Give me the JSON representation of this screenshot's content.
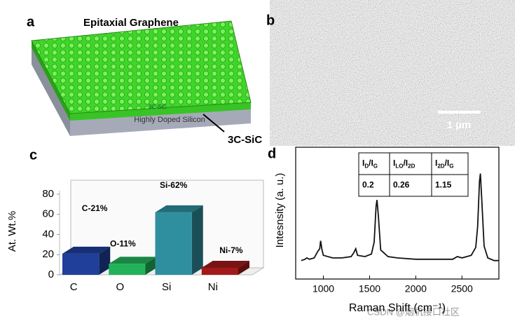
{
  "panel_labels": [
    "a",
    "b",
    "c",
    "d"
  ],
  "illustration": {
    "top_label": "Epitaxial Graphene",
    "layer_label": "3C-SiC",
    "substrate_label": "Highly Doped Silicon",
    "callout": "3C-SiC"
  },
  "micrograph": {
    "scale_bar": "1 µm"
  },
  "chart_data": [
    {
      "type": "bar3d",
      "ylabel": "At. Wt.%",
      "categories": [
        "C",
        "O",
        "Si",
        "Ni"
      ],
      "values": [
        21,
        11,
        62,
        7
      ],
      "value_labels": [
        "C-21%",
        "O-11%",
        "Si-62%",
        "Ni-7%"
      ],
      "colors": [
        "#1f3f9a",
        "#22b35a",
        "#2f8f9f",
        "#a31a1a"
      ],
      "ylim": [
        0,
        80
      ],
      "yticks": [
        0,
        20,
        40,
        60,
        80
      ]
    },
    {
      "type": "line",
      "xlabel": "Raman Shift (cm⁻¹)",
      "ylabel": "Intesnsity (a. u.)",
      "color": "#111111",
      "x": [
        760,
        800,
        820,
        850,
        900,
        940,
        960,
        970,
        985,
        1000,
        1100,
        1200,
        1300,
        1330,
        1350,
        1370,
        1450,
        1520,
        1550,
        1570,
        1580,
        1595,
        1620,
        1700,
        1800,
        2000,
        2200,
        2400,
        2450,
        2500,
        2600,
        2650,
        2670,
        2690,
        2700,
        2715,
        2740,
        2780,
        2850,
        2900
      ],
      "values": [
        14,
        15,
        16,
        15,
        16,
        21,
        23,
        29,
        22,
        18,
        16,
        16,
        17,
        20,
        23,
        18,
        17,
        19,
        28,
        55,
        60,
        48,
        22,
        17,
        16,
        15,
        15,
        15,
        17,
        16,
        18,
        24,
        40,
        74,
        80,
        60,
        25,
        16,
        14,
        14
      ],
      "xlim": [
        700,
        2900
      ],
      "ylim": [
        0,
        100
      ],
      "xticks": [
        1000,
        1500,
        2000,
        2500
      ],
      "table": {
        "header": [
          [
            "I",
            "D",
            "/I",
            "G"
          ],
          [
            "I",
            "LO",
            "/I",
            "2D"
          ],
          [
            "I",
            "2D",
            "/I",
            "G"
          ]
        ],
        "row": [
          0.2,
          0.26,
          1.15
        ]
      }
    }
  ],
  "watermark": "CSDN @烟机接口社区"
}
